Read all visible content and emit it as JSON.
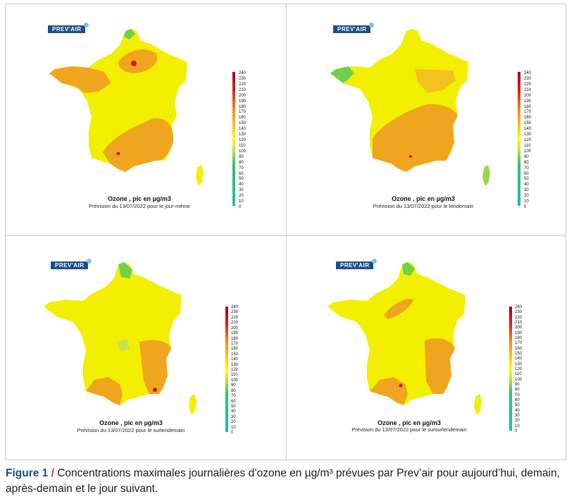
{
  "logo_text": "PREV'AIR",
  "panels": [
    {
      "title": "Ozone , pic en µg/m3",
      "subtitle": "Prévision du 13/07/2022 pour le jour-même"
    },
    {
      "title": "Ozone , pic en µg/m3",
      "subtitle": "Prévision du 13/07/2022 pour le lendemain"
    },
    {
      "title": "Ozone , pic en µg/m3",
      "subtitle": "Prévision du 13/07/2022 pour le surlendemain"
    },
    {
      "title": "Ozone , pic en µg/m3",
      "subtitle": "Prévision du 13/07/2022 pour le sursurlendemain"
    }
  ],
  "scale": {
    "ticks": [
      "240",
      "230",
      "220",
      "210",
      "200",
      "190",
      "180",
      "170",
      "160",
      "150",
      "140",
      "130",
      "120",
      "110",
      "100",
      "90",
      "80",
      "70",
      "60",
      "50",
      "40",
      "30",
      "20",
      "10",
      "0"
    ],
    "colors": {
      "red": "#c8001a",
      "orange_red": "#e8581a",
      "orange": "#f2a21e",
      "yellow": "#ffff00",
      "yellow_green": "#c6e24a",
      "green": "#5ac84a",
      "teal": "#1fbf9c"
    }
  },
  "caption": {
    "figure": "Figure 1",
    "slash": " / ",
    "text": "Concentrations maximales journalières d’ozone en µg/m³ prévues par Prev’air pour aujourd’hui, demain, après-demain et le jour suivant."
  }
}
